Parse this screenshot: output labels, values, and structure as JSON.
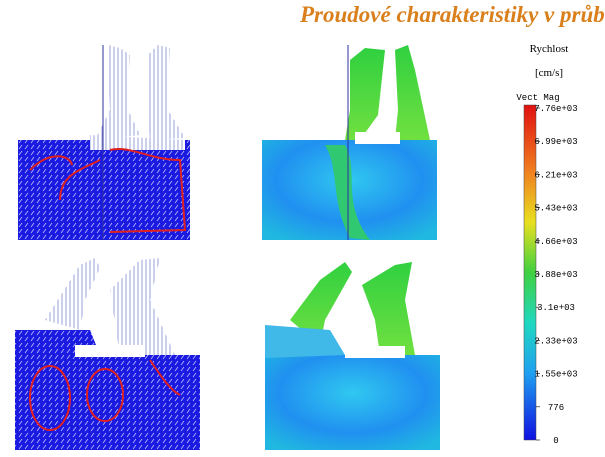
{
  "header": {
    "title": "Proudové charakteristiky v průběhu sání"
  },
  "colorbar": {
    "label": "Rychlost",
    "unit": "[cm/s]",
    "name": "Vect Mag",
    "ticks": [
      "7.76e+03",
      "6.99e+03",
      "6.21e+03",
      "5.43e+03",
      "4.66e+03",
      "3.88e+03",
      "3.1e+03",
      "2.33e+03",
      "1.55e+03",
      "776",
      "0"
    ]
  }
}
